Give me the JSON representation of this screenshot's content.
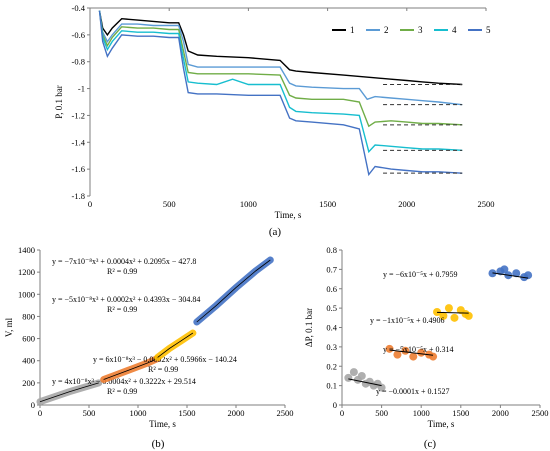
{
  "panel_labels": [
    "(a)",
    "(b)",
    "(c)"
  ],
  "chart_data": [
    {
      "id": "a",
      "type": "line",
      "title": "",
      "xlabel": "Time, s",
      "ylabel": "P, 0.1 bar",
      "xlim": [
        0,
        2500
      ],
      "ylim": [
        -1.8,
        -0.4
      ],
      "xticks": [
        0,
        500,
        1000,
        1500,
        2000,
        2500
      ],
      "yticks": [
        -1.8,
        -1.6,
        -1.4,
        -1.2,
        -1.0,
        -0.8,
        -0.6,
        -0.4
      ],
      "grid": false,
      "legend": "top-right, horizontal",
      "series": [
        {
          "name": "1",
          "color": "#000000",
          "x": [
            60,
            80,
            110,
            140,
            200,
            300,
            400,
            500,
            560,
            590,
            620,
            680,
            800,
            1000,
            1200,
            1260,
            1300,
            1400,
            1600,
            1800,
            1900,
            2000,
            2100,
            2200,
            2350
          ],
          "y": [
            -0.42,
            -0.55,
            -0.6,
            -0.55,
            -0.48,
            -0.49,
            -0.5,
            -0.51,
            -0.51,
            -0.6,
            -0.72,
            -0.75,
            -0.76,
            -0.77,
            -0.79,
            -0.86,
            -0.87,
            -0.88,
            -0.9,
            -0.92,
            -0.93,
            -0.94,
            -0.95,
            -0.96,
            -0.97
          ]
        },
        {
          "name": "2",
          "color": "#5b9bd5",
          "x": [
            60,
            80,
            110,
            140,
            200,
            300,
            400,
            500,
            560,
            590,
            620,
            680,
            800,
            1000,
            1200,
            1260,
            1300,
            1400,
            1600,
            1700,
            1750,
            1800,
            1900,
            2000,
            2100,
            2200,
            2350
          ],
          "y": [
            -0.42,
            -0.58,
            -0.65,
            -0.6,
            -0.52,
            -0.52,
            -0.53,
            -0.53,
            -0.53,
            -0.65,
            -0.82,
            -0.84,
            -0.84,
            -0.84,
            -0.84,
            -0.96,
            -0.98,
            -0.99,
            -1.0,
            -1.0,
            -1.08,
            -1.06,
            -1.07,
            -1.08,
            -1.09,
            -1.1,
            -1.12
          ]
        },
        {
          "name": "3",
          "color": "#70ad47",
          "x": [
            60,
            80,
            110,
            140,
            200,
            300,
            400,
            500,
            560,
            590,
            620,
            680,
            800,
            1000,
            1200,
            1260,
            1300,
            1400,
            1600,
            1700,
            1760,
            1800,
            1900,
            2000,
            2100,
            2200,
            2350
          ],
          "y": [
            -0.42,
            -0.6,
            -0.68,
            -0.62,
            -0.54,
            -0.55,
            -0.55,
            -0.56,
            -0.56,
            -0.72,
            -0.88,
            -0.89,
            -0.89,
            -0.89,
            -0.9,
            -1.05,
            -1.07,
            -1.08,
            -1.08,
            -1.1,
            -1.28,
            -1.25,
            -1.24,
            -1.25,
            -1.26,
            -1.26,
            -1.27
          ]
        },
        {
          "name": "4",
          "color": "#17becf",
          "x": [
            60,
            80,
            110,
            140,
            200,
            300,
            400,
            500,
            560,
            590,
            620,
            680,
            800,
            900,
            1000,
            1200,
            1260,
            1300,
            1400,
            1600,
            1700,
            1760,
            1800,
            1900,
            2000,
            2100,
            2200,
            2350
          ],
          "y": [
            -0.42,
            -0.62,
            -0.71,
            -0.65,
            -0.57,
            -0.58,
            -0.58,
            -0.59,
            -0.59,
            -0.78,
            -0.95,
            -0.96,
            -0.97,
            -0.93,
            -0.97,
            -0.97,
            -1.14,
            -1.17,
            -1.18,
            -1.19,
            -1.2,
            -1.47,
            -1.42,
            -1.43,
            -1.44,
            -1.45,
            -1.45,
            -1.46
          ]
        },
        {
          "name": "5",
          "color": "#4472c4",
          "x": [
            60,
            80,
            110,
            140,
            200,
            300,
            400,
            500,
            560,
            590,
            620,
            680,
            800,
            1000,
            1200,
            1260,
            1300,
            1400,
            1600,
            1700,
            1760,
            1800,
            1900,
            2000,
            2100,
            2200,
            2350
          ],
          "y": [
            -0.42,
            -0.65,
            -0.76,
            -0.7,
            -0.6,
            -0.61,
            -0.61,
            -0.62,
            -0.62,
            -0.85,
            -1.03,
            -1.04,
            -1.04,
            -1.05,
            -1.05,
            -1.22,
            -1.24,
            -1.25,
            -1.27,
            -1.3,
            -1.64,
            -1.58,
            -1.6,
            -1.61,
            -1.62,
            -1.62,
            -1.63
          ]
        }
      ]
    },
    {
      "id": "b",
      "type": "scatter",
      "title": "",
      "xlabel": "Time, s",
      "ylabel": "V, ml",
      "xlim": [
        0,
        2500
      ],
      "ylim": [
        0,
        1400
      ],
      "xticks": [
        0,
        500,
        1000,
        1500,
        2000,
        2500
      ],
      "yticks": [
        0,
        200,
        400,
        600,
        800,
        1000,
        1200,
        1400
      ],
      "grid": false,
      "series": [
        {
          "color": "#a6a6a6",
          "x": [
            0,
            150,
            300,
            450,
            600
          ],
          "y": [
            30,
            75,
            120,
            160,
            200
          ],
          "equation": "y = 4x10⁻⁸x³ − 0.0004x² + 0.3222x + 29.514",
          "r2": "R² = 0.99"
        },
        {
          "color": "#ed7d31",
          "x": [
            650,
            800,
            950,
            1100,
            1200
          ],
          "y": [
            230,
            280,
            330,
            380,
            420
          ],
          "equation": "y = 6x10⁻⁸x³ − 0.0002x² + 0.5966x − 140.24",
          "r2": "R² = 0.99"
        },
        {
          "color": "#ffc000",
          "x": [
            1200,
            1320,
            1440,
            1560
          ],
          "y": [
            430,
            510,
            580,
            650
          ],
          "equation": "y = −5x10⁻⁸x³ + 0.0002x² + 0.4393x − 304.84",
          "r2": "R² = 0.99"
        },
        {
          "color": "#4472c4",
          "x": [
            1600,
            1800,
            2000,
            2200,
            2350
          ],
          "y": [
            750,
            900,
            1060,
            1210,
            1310
          ],
          "equation": "y = −7x10⁻⁸x³ + 0.0004x² + 0.2095x − 427.8",
          "r2": "R² = 0.99"
        }
      ]
    },
    {
      "id": "c",
      "type": "scatter",
      "title": "",
      "xlabel": "Time, s",
      "ylabel": "ΔP, 0.1 bar",
      "xlim": [
        0,
        2500
      ],
      "ylim": [
        0,
        0.8
      ],
      "xticks": [
        0,
        500,
        1000,
        1500,
        2000,
        2500
      ],
      "yticks": [
        0,
        0.1,
        0.2,
        0.3,
        0.4,
        0.5,
        0.6,
        0.7,
        0.8
      ],
      "grid": false,
      "series": [
        {
          "color": "#a6a6a6",
          "x": [
            80,
            150,
            200,
            250,
            300,
            350,
            400,
            450,
            500
          ],
          "y": [
            0.14,
            0.17,
            0.13,
            0.15,
            0.11,
            0.12,
            0.1,
            0.11,
            0.09
          ],
          "trend": [
            [
              80,
              0.135
            ],
            [
              500,
              0.1
            ]
          ],
          "equation": "y = −0.0001x + 0.1527"
        },
        {
          "color": "#ed7d31",
          "x": [
            600,
            700,
            800,
            900,
            1000,
            1100,
            1150
          ],
          "y": [
            0.29,
            0.26,
            0.28,
            0.25,
            0.27,
            0.26,
            0.25
          ],
          "trend": [
            [
              600,
              0.284
            ],
            [
              1150,
              0.257
            ]
          ],
          "equation": "y = −5x10⁻⁵x + 0.314"
        },
        {
          "color": "#ffc000",
          "x": [
            1200,
            1280,
            1350,
            1420,
            1500,
            1560,
            1600
          ],
          "y": [
            0.48,
            0.46,
            0.5,
            0.45,
            0.49,
            0.47,
            0.46
          ],
          "trend": [
            [
              1200,
              0.478
            ],
            [
              1600,
              0.474
            ]
          ],
          "equation": "y = −1x10⁻⁵x + 0.4906"
        },
        {
          "color": "#4472c4",
          "x": [
            1900,
            2000,
            2050,
            2100,
            2200,
            2300,
            2350
          ],
          "y": [
            0.68,
            0.69,
            0.7,
            0.67,
            0.68,
            0.66,
            0.67
          ],
          "trend": [
            [
              1900,
              0.682
            ],
            [
              2350,
              0.655
            ]
          ],
          "equation": "y = −6x10⁻⁵x + 0.7959"
        }
      ]
    }
  ]
}
